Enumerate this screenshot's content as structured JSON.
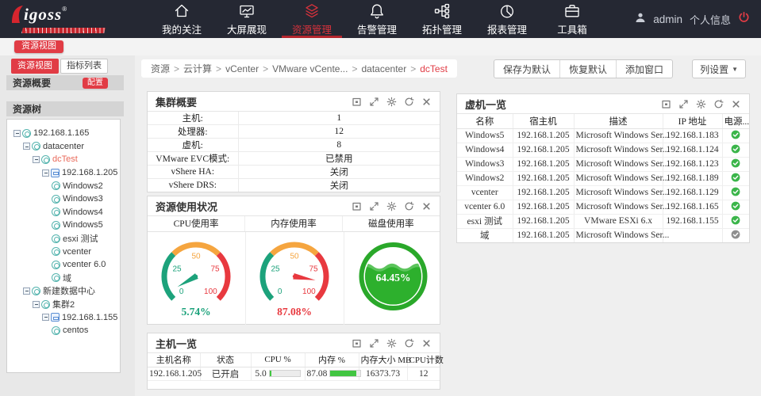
{
  "colors": {
    "accent": "#e13c45",
    "nav_bg": "#252833",
    "gauge_green": "#1ca27b",
    "gauge_orange": "#f5a53f",
    "gauge_red": "#e8393f",
    "disk_green": "#2aa82a",
    "bar_green": "#41c541",
    "power_on": "#3bb54a",
    "power_off": "#8f8f8f"
  },
  "nav": {
    "logo_text": "igoss",
    "logo_reg": "®",
    "items": [
      {
        "label": "我的关注",
        "icon": "home-icon",
        "active": false
      },
      {
        "label": "大屏展现",
        "icon": "screen-icon",
        "active": false
      },
      {
        "label": "资源管理",
        "icon": "layers-icon",
        "active": true
      },
      {
        "label": "告警管理",
        "icon": "bell-icon",
        "active": false
      },
      {
        "label": "拓扑管理",
        "icon": "topology-icon",
        "active": false
      },
      {
        "label": "报表管理",
        "icon": "pie-chart-icon",
        "active": false
      },
      {
        "label": "工具箱",
        "icon": "toolbox-icon",
        "active": false
      }
    ],
    "username": "admin",
    "profile_label": "个人信息"
  },
  "sidebar": {
    "view_tag": "资源视图",
    "tabs": [
      {
        "label": "资源视图",
        "active": true
      },
      {
        "label": "指标列表",
        "active": false
      }
    ],
    "overview_title": "资源概要",
    "config_button": "配置",
    "tree_title": "资源树",
    "tree": [
      {
        "label": "192.168.1.165",
        "indent": 0,
        "expand": true,
        "icon": "vcenter",
        "selected": false
      },
      {
        "label": "datacenter",
        "indent": 1,
        "expand": true,
        "icon": "datacenter",
        "selected": false
      },
      {
        "label": "dcTest",
        "indent": 2,
        "expand": true,
        "icon": "cluster",
        "selected": true
      },
      {
        "label": "192.168.1.205",
        "indent": 3,
        "expand": true,
        "icon": "host",
        "selected": false
      },
      {
        "label": "Windows2",
        "indent": 4,
        "expand": false,
        "icon": "vm",
        "selected": false
      },
      {
        "label": "Windows3",
        "indent": 4,
        "expand": false,
        "icon": "vm",
        "selected": false
      },
      {
        "label": "Windows4",
        "indent": 4,
        "expand": false,
        "icon": "vm",
        "selected": false
      },
      {
        "label": "Windows5",
        "indent": 4,
        "expand": false,
        "icon": "vm",
        "selected": false
      },
      {
        "label": "esxi 测试",
        "indent": 4,
        "expand": false,
        "icon": "vm",
        "selected": false
      },
      {
        "label": "vcenter",
        "indent": 4,
        "expand": false,
        "icon": "vm",
        "selected": false
      },
      {
        "label": "vcenter 6.0",
        "indent": 4,
        "expand": false,
        "icon": "vm",
        "selected": false
      },
      {
        "label": "域",
        "indent": 4,
        "expand": false,
        "icon": "vm",
        "selected": false
      },
      {
        "label": "新建数据中心",
        "indent": 1,
        "expand": true,
        "icon": "datacenter",
        "selected": false
      },
      {
        "label": "集群2",
        "indent": 2,
        "expand": true,
        "icon": "cluster",
        "selected": false
      },
      {
        "label": "192.168.1.155",
        "indent": 3,
        "expand": true,
        "icon": "host",
        "selected": false
      },
      {
        "label": "centos",
        "indent": 4,
        "expand": false,
        "icon": "vm",
        "selected": false
      }
    ]
  },
  "breadcrumb": {
    "parts": [
      "资源",
      "云计算",
      "vCenter",
      "VMware vCente...",
      "datacenter"
    ],
    "current": "dcTest",
    "separator": ">"
  },
  "toolbar": {
    "group_buttons": [
      "保存为默认",
      "恢复默认",
      "添加窗口"
    ],
    "column_settings": "列设置",
    "caret": "▼"
  },
  "window_controls": [
    "collapse-icon",
    "fullscreen-icon",
    "settings-icon",
    "refresh-icon",
    "close-icon"
  ],
  "panels": {
    "cluster": {
      "title": "集群概要",
      "rows": [
        {
          "label": "主机:",
          "value": "1"
        },
        {
          "label": "处理器:",
          "value": "12"
        },
        {
          "label": "虚机:",
          "value": "8"
        },
        {
          "label": "VMware EVC模式:",
          "value": "已禁用"
        },
        {
          "label": "vShere HA:",
          "value": "关闭"
        },
        {
          "label": "vShere DRS:",
          "value": "关闭"
        }
      ]
    },
    "vm": {
      "title": "虚机一览",
      "columns": [
        "名称",
        "宿主机",
        "描述",
        "IP 地址",
        "电源..."
      ],
      "rows": [
        {
          "name": "Windows5",
          "host": "192.168.1.205",
          "desc": "Microsoft Windows Ser...",
          "ip": "192.168.1.183",
          "power": "on"
        },
        {
          "name": "Windows4",
          "host": "192.168.1.205",
          "desc": "Microsoft Windows Ser...",
          "ip": "192.168.1.124",
          "power": "on"
        },
        {
          "name": "Windows3",
          "host": "192.168.1.205",
          "desc": "Microsoft Windows Ser...",
          "ip": "192.168.1.123",
          "power": "on"
        },
        {
          "name": "Windows2",
          "host": "192.168.1.205",
          "desc": "Microsoft Windows Ser...",
          "ip": "192.168.1.189",
          "power": "on"
        },
        {
          "name": "vcenter",
          "host": "192.168.1.205",
          "desc": "Microsoft Windows Ser...",
          "ip": "192.168.1.129",
          "power": "on"
        },
        {
          "name": "vcenter 6.0",
          "host": "192.168.1.205",
          "desc": "Microsoft Windows Ser...",
          "ip": "192.168.1.165",
          "power": "on"
        },
        {
          "name": "esxi 测试",
          "host": "192.168.1.205",
          "desc": "VMware ESXi 6.x",
          "ip": "192.168.1.155",
          "power": "on"
        },
        {
          "name": "域",
          "host": "192.168.1.205",
          "desc": "Microsoft Windows Ser...",
          "ip": "",
          "power": "off"
        }
      ]
    },
    "usage": {
      "title": "资源使用状况",
      "columns": [
        "CPU使用率",
        "内存使用率",
        "磁盘使用率"
      ],
      "ticks": [
        {
          "v": 0,
          "label": "0",
          "color": "#1ca27b"
        },
        {
          "v": 25,
          "label": "25",
          "color": "#1ca27b"
        },
        {
          "v": 50,
          "label": "50",
          "color": "#f5a53f"
        },
        {
          "v": 75,
          "label": "75",
          "color": "#e8393f"
        },
        {
          "v": 100,
          "label": "100",
          "color": "#e8393f"
        }
      ],
      "gauges": [
        {
          "label": "CPU使用率",
          "type": "dial",
          "value": 5.74,
          "display": "5.74%",
          "color": "#1ca27b"
        },
        {
          "label": "内存使用率",
          "type": "dial",
          "value": 87.08,
          "display": "87.08%",
          "color": "#e8393f"
        },
        {
          "label": "磁盘使用率",
          "type": "liquid",
          "value": 64.45,
          "display": "64.45%",
          "color": "#2aa82a"
        }
      ]
    },
    "host": {
      "title": "主机一览",
      "columns": [
        "主机名称",
        "状态",
        "CPU %",
        "内存 %",
        "内存大小 MB",
        "CPU计数"
      ],
      "rows": [
        {
          "name": "192.168.1.205",
          "status": "已开启",
          "cpu_text": "5.0",
          "cpu_pct": 5.0,
          "mem_text": "87.08",
          "mem_pct": 87.08,
          "mem_mb": "16373.73",
          "cpu_count": "12"
        }
      ]
    }
  },
  "chart_data": [
    {
      "type": "gauge",
      "title": "CPU使用率",
      "value": 5.74,
      "min": 0,
      "max": 100,
      "unit": "%",
      "ticks": [
        0,
        25,
        50,
        75,
        100
      ]
    },
    {
      "type": "gauge",
      "title": "内存使用率",
      "value": 87.08,
      "min": 0,
      "max": 100,
      "unit": "%",
      "ticks": [
        0,
        25,
        50,
        75,
        100
      ]
    },
    {
      "type": "gauge",
      "title": "磁盘使用率",
      "value": 64.45,
      "min": 0,
      "max": 100,
      "unit": "%",
      "style": "liquid-fill"
    },
    {
      "type": "bar",
      "title": "主机一览 192.168.1.205",
      "categories": [
        "CPU %",
        "内存 %"
      ],
      "values": [
        5.0,
        87.08
      ],
      "xlim": [
        0,
        100
      ]
    }
  ]
}
